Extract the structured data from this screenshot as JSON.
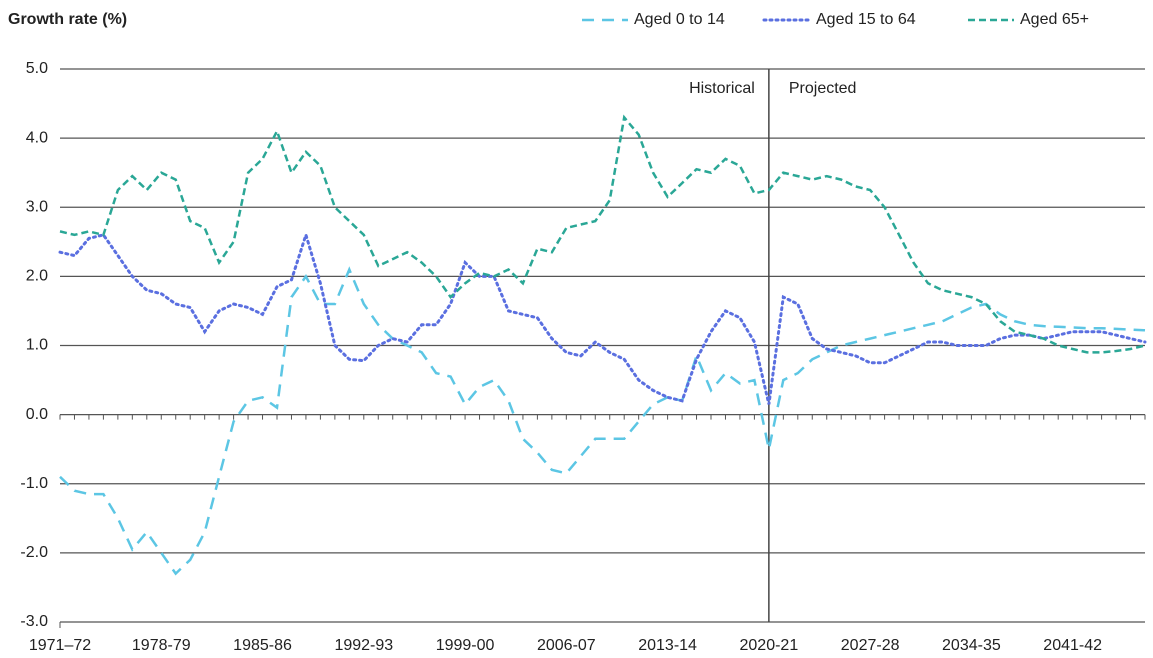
{
  "chart_data": {
    "type": "line",
    "y_axis_label": "Growth rate (%)",
    "categories": [
      "1971–72",
      null,
      null,
      null,
      null,
      null,
      null,
      "1978-79",
      null,
      null,
      null,
      null,
      null,
      null,
      "1985-86",
      null,
      null,
      null,
      null,
      null,
      null,
      "1992-93",
      null,
      null,
      null,
      null,
      null,
      null,
      "1999-00",
      null,
      null,
      null,
      null,
      null,
      null,
      "2006-07",
      null,
      null,
      null,
      null,
      null,
      null,
      "2013-14",
      null,
      null,
      null,
      null,
      null,
      null,
      "2020-21",
      null,
      null,
      null,
      null,
      null,
      null,
      "2027-28",
      null,
      null,
      null,
      null,
      null,
      null,
      "2034-35",
      null,
      null,
      null,
      null,
      null,
      null,
      "2041-42",
      null,
      null,
      null,
      null,
      null
    ],
    "series": [
      {
        "name": "Aged 0 to 14",
        "color": "#5cc6e4",
        "dash": "long",
        "values": [
          -0.9,
          -1.1,
          -1.15,
          -1.15,
          -1.5,
          -1.95,
          -1.7,
          -2.0,
          -2.3,
          -2.1,
          -1.7,
          -0.9,
          -0.1,
          0.2,
          0.25,
          0.1,
          1.7,
          2.0,
          1.6,
          1.6,
          2.1,
          1.6,
          1.3,
          1.1,
          1.0,
          0.9,
          0.6,
          0.55,
          0.15,
          0.4,
          0.5,
          0.2,
          -0.35,
          -0.55,
          -0.8,
          -0.85,
          -0.6,
          -0.35,
          -0.35,
          -0.35,
          -0.1,
          0.15,
          0.25,
          0.2,
          0.85,
          0.35,
          0.6,
          0.45,
          0.5,
          -0.5,
          0.5,
          0.6,
          0.8,
          0.9,
          1.0,
          1.05,
          1.1,
          1.15,
          1.2,
          1.25,
          1.3,
          1.35,
          1.45,
          1.55,
          1.6,
          1.45,
          1.35,
          1.3,
          1.28,
          1.27,
          1.26,
          1.25,
          1.25,
          1.24,
          1.23,
          1.22
        ]
      },
      {
        "name": "Aged 15 to 64",
        "color": "#5a6fe0",
        "dash": "dotted",
        "values": [
          2.35,
          2.3,
          2.55,
          2.6,
          2.3,
          2.0,
          1.8,
          1.75,
          1.6,
          1.55,
          1.2,
          1.5,
          1.6,
          1.55,
          1.45,
          1.85,
          1.95,
          2.6,
          1.9,
          1.0,
          0.8,
          0.78,
          1.0,
          1.1,
          1.05,
          1.3,
          1.3,
          1.6,
          2.2,
          2.0,
          2.0,
          1.5,
          1.45,
          1.4,
          1.1,
          0.9,
          0.85,
          1.05,
          0.9,
          0.8,
          0.5,
          0.35,
          0.25,
          0.2,
          0.8,
          1.2,
          1.5,
          1.4,
          1.05,
          0.15,
          1.7,
          1.6,
          1.1,
          0.95,
          0.9,
          0.85,
          0.75,
          0.75,
          0.85,
          0.95,
          1.05,
          1.05,
          1.0,
          1.0,
          1.0,
          1.1,
          1.15,
          1.15,
          1.1,
          1.15,
          1.2,
          1.2,
          1.2,
          1.15,
          1.1,
          1.05
        ]
      },
      {
        "name": "Aged 65+",
        "color": "#2aa796",
        "dash": "dashed",
        "values": [
          2.65,
          2.6,
          2.65,
          2.6,
          3.25,
          3.45,
          3.25,
          3.5,
          3.4,
          2.8,
          2.7,
          2.2,
          2.5,
          3.5,
          3.7,
          4.1,
          3.5,
          3.8,
          3.6,
          3.0,
          2.8,
          2.6,
          2.15,
          2.25,
          2.35,
          2.2,
          2.0,
          1.7,
          1.9,
          2.05,
          2.0,
          2.1,
          1.9,
          2.4,
          2.35,
          2.7,
          2.75,
          2.8,
          3.1,
          4.3,
          4.05,
          3.5,
          3.15,
          3.35,
          3.55,
          3.5,
          3.7,
          3.6,
          3.2,
          3.25,
          3.5,
          3.45,
          3.4,
          3.45,
          3.4,
          3.3,
          3.25,
          3.0,
          2.6,
          2.2,
          1.9,
          1.8,
          1.75,
          1.7,
          1.6,
          1.35,
          1.2,
          1.15,
          1.1,
          1.0,
          0.95,
          0.9,
          0.9,
          0.92,
          0.95,
          1.0
        ]
      }
    ],
    "ylim": [
      -3,
      5
    ],
    "yticks": [
      {
        "value": -3,
        "label": "-3.0"
      },
      {
        "value": -2,
        "label": "-2.0"
      },
      {
        "value": -1,
        "label": "-1.0"
      },
      {
        "value": 0,
        "label": "0.0"
      },
      {
        "value": 1,
        "label": "1.0"
      },
      {
        "value": 2,
        "label": "2.0"
      },
      {
        "value": 3,
        "label": "3.0"
      },
      {
        "value": 4,
        "label": "4.0"
      },
      {
        "value": 5,
        "label": "5.0"
      }
    ],
    "grid": true,
    "divider": {
      "x": "2020-21",
      "left_label": "Historical",
      "right_label": "Projected"
    },
    "legend": "top-right"
  }
}
